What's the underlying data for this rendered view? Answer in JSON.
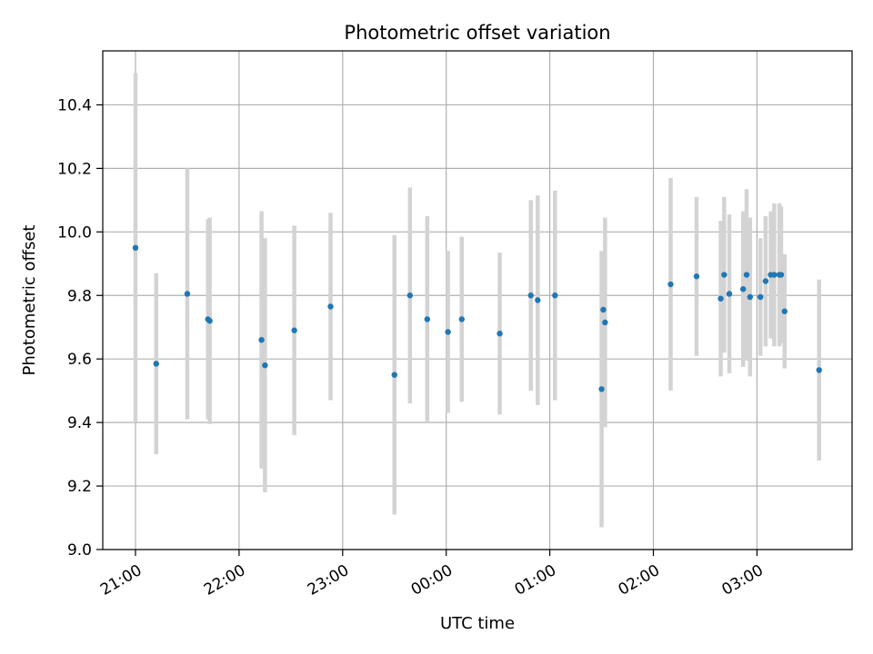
{
  "chart_data": {
    "type": "scatter",
    "title": "Photometric offset variation",
    "xlabel": "UTC time",
    "ylabel": "Photometric offset",
    "x_axis": "time",
    "x_ticks": [
      "21:00",
      "22:00",
      "23:00",
      "00:00",
      "01:00",
      "02:00",
      "03:00"
    ],
    "y_ticks": [
      "9.0",
      "9.2",
      "9.4",
      "9.6",
      "9.8",
      "10.0",
      "10.2",
      "10.4"
    ],
    "ylim": [
      9.0,
      10.57
    ],
    "grid": true,
    "colors": {
      "points": "#1f77b4",
      "error_bars": "#d3d3d3",
      "grid": "#b0b0b0"
    },
    "points": [
      {
        "t": "21:00",
        "y": 9.95,
        "err": 0.55
      },
      {
        "t": "21:12",
        "y": 9.585,
        "err": 0.285
      },
      {
        "t": "21:30",
        "y": 9.805,
        "err": 0.395
      },
      {
        "t": "21:42",
        "y": 9.725,
        "err": 0.315
      },
      {
        "t": "21:43",
        "y": 9.72,
        "err": 0.325
      },
      {
        "t": "22:13",
        "y": 9.66,
        "err": 0.405
      },
      {
        "t": "22:15",
        "y": 9.58,
        "err": 0.4
      },
      {
        "t": "22:32",
        "y": 9.69,
        "err": 0.33
      },
      {
        "t": "22:53",
        "y": 9.765,
        "err": 0.295
      },
      {
        "t": "23:30",
        "y": 9.55,
        "err": 0.44
      },
      {
        "t": "23:39",
        "y": 9.8,
        "err": 0.34
      },
      {
        "t": "23:49",
        "y": 9.725,
        "err": 0.325
      },
      {
        "t": "00:01",
        "y": 9.685,
        "err": 0.255
      },
      {
        "t": "00:09",
        "y": 9.725,
        "err": 0.26
      },
      {
        "t": "00:31",
        "y": 9.68,
        "err": 0.255
      },
      {
        "t": "00:49",
        "y": 9.8,
        "err": 0.3
      },
      {
        "t": "00:53",
        "y": 9.785,
        "err": 0.33
      },
      {
        "t": "01:03",
        "y": 9.8,
        "err": 0.33
      },
      {
        "t": "01:30",
        "y": 9.505,
        "err": 0.435
      },
      {
        "t": "01:31",
        "y": 9.755,
        "err": 0.175
      },
      {
        "t": "01:32",
        "y": 9.715,
        "err": 0.33
      },
      {
        "t": "02:10",
        "y": 9.835,
        "err": 0.335
      },
      {
        "t": "02:25",
        "y": 9.86,
        "err": 0.25
      },
      {
        "t": "02:39",
        "y": 9.79,
        "err": 0.245
      },
      {
        "t": "02:41",
        "y": 9.865,
        "err": 0.245
      },
      {
        "t": "02:44",
        "y": 9.805,
        "err": 0.25
      },
      {
        "t": "02:52",
        "y": 9.82,
        "err": 0.245
      },
      {
        "t": "02:54",
        "y": 9.865,
        "err": 0.27
      },
      {
        "t": "02:56",
        "y": 9.795,
        "err": 0.25
      },
      {
        "t": "03:02",
        "y": 9.795,
        "err": 0.185
      },
      {
        "t": "03:05",
        "y": 9.845,
        "err": 0.205
      },
      {
        "t": "03:08",
        "y": 9.865,
        "err": 0.2
      },
      {
        "t": "03:10",
        "y": 9.865,
        "err": 0.225
      },
      {
        "t": "03:13",
        "y": 9.865,
        "err": 0.225
      },
      {
        "t": "03:14",
        "y": 9.865,
        "err": 0.215
      },
      {
        "t": "03:16",
        "y": 9.75,
        "err": 0.18
      },
      {
        "t": "03:36",
        "y": 9.565,
        "err": 0.285
      }
    ]
  }
}
